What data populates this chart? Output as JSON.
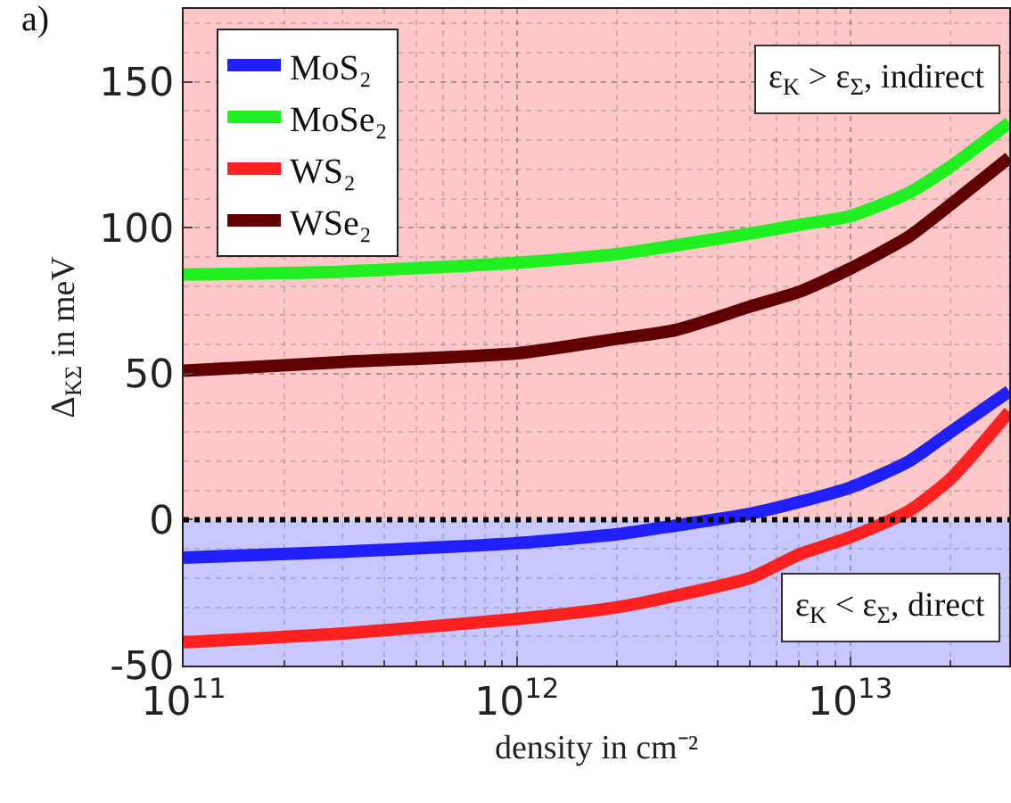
{
  "chart_data": {
    "type": "line",
    "xlabel": "density in cm⁻²",
    "ylabel": "Δ$_{KΣ}$ in meV",
    "log": "x",
    "grid": true,
    "legend": "top left",
    "line_style": "solid",
    "marker": "none",
    "xlim": [
      100000000000.0,
      30000000000000.0
    ],
    "xticks": [
      {
        "value": 100000000000.0,
        "label": "10$^{11}$"
      },
      {
        "value": 1000000000000.0,
        "label": "10$^{12}$"
      },
      {
        "value": 10000000000000.0,
        "label": "10$^{13}$"
      }
    ],
    "ylim": [
      -50,
      175
    ],
    "yticks": [
      -50,
      0,
      50,
      100,
      150
    ],
    "x": [
      100000000000.0,
      300000000000.0,
      1000000000000.0,
      2000000000000.0,
      3000000000000.0,
      5000000000000.0,
      7000000000000.0,
      10000000000000.0,
      15000000000000.0,
      20000000000000.0,
      30000000000000.0
    ],
    "series": [
      {
        "name": "MoS₂",
        "color": "#2020ff",
        "values": [
          -13,
          -11,
          -8,
          -5,
          -2,
          2,
          6,
          11,
          20,
          30,
          44
        ]
      },
      {
        "name": "MoSe₂",
        "color": "#20f020",
        "values": [
          84,
          85,
          88,
          91,
          94,
          98,
          101,
          104,
          112,
          121,
          136
        ]
      },
      {
        "name": "WS₂",
        "color": "#ff2020",
        "values": [
          -42,
          -39,
          -34,
          -30,
          -26,
          -20,
          -12,
          -6,
          3,
          14,
          37
        ]
      },
      {
        "name": "WSe₂",
        "color": "#600000",
        "values": [
          51,
          54,
          57,
          62,
          65,
          73,
          78,
          86,
          97,
          108,
          124
        ]
      }
    ],
    "bands": [
      {
        "axis": "y",
        "from": 0,
        "to": 175,
        "label": "ε$_{K}$ > ε$_{Σ}$, indirect",
        "color": "#ffc8c8"
      },
      {
        "axis": "y",
        "from": -50,
        "to": 0,
        "label": "ε$_{K}$ < ε$_{Σ}$, direct",
        "color": "#c8c8ff"
      }
    ],
    "ref_lines": [
      {
        "axis": "y",
        "value": 0,
        "color": "#000000",
        "line_style": "dotted"
      }
    ],
    "annotations": [
      "a)"
    ]
  }
}
